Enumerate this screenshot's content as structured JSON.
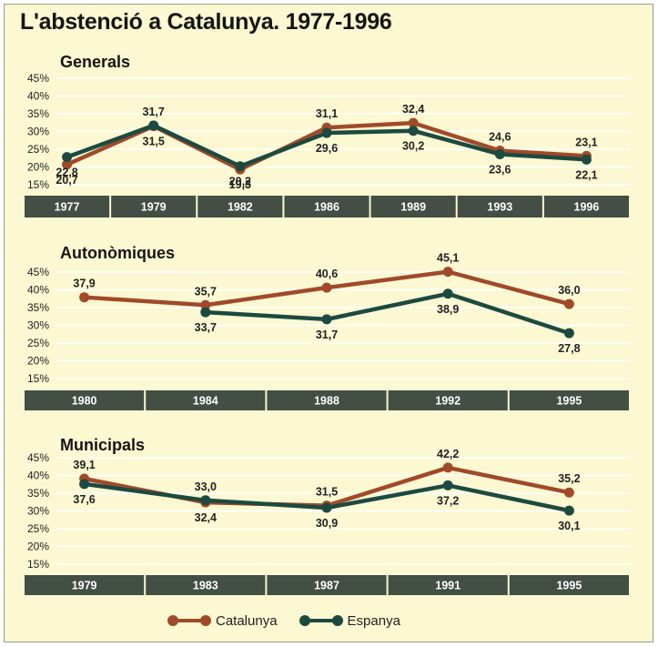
{
  "title": "L'abstenció a Catalunya. 1977-1996",
  "colors": {
    "catalunya": "#a04a2a",
    "espanya": "#1c4a40",
    "gridline": "#ffffff",
    "axis_bar": "#434e44",
    "background": "#fbf8d2"
  },
  "legend": {
    "placement": "bottom-center",
    "items": [
      "Catalunya",
      "Espanya"
    ]
  },
  "chart_data": [
    {
      "type": "line",
      "title": "Generals",
      "categories": [
        "1977",
        "1979",
        "1982",
        "1986",
        "1989",
        "1993",
        "1996"
      ],
      "yticks": [
        "15%",
        "20%",
        "25%",
        "30%",
        "35%",
        "40%",
        "45%"
      ],
      "ylim": [
        15,
        45
      ],
      "grid": true,
      "series": [
        {
          "name": "Catalunya",
          "values": [
            20.7,
            31.5,
            19.3,
            31.1,
            32.4,
            24.6,
            23.1
          ],
          "labels": [
            "20,7",
            "31,5",
            "19,3",
            "31,1",
            "32,4",
            "24,6",
            "23,1"
          ]
        },
        {
          "name": "Espanya",
          "values": [
            22.8,
            31.7,
            20.2,
            29.6,
            30.2,
            23.6,
            22.1
          ],
          "labels": [
            "22,8",
            "31,7",
            "20,2",
            "29,6",
            "30,2",
            "23,6",
            "22,1"
          ]
        }
      ]
    },
    {
      "type": "line",
      "title": "Autonòmiques",
      "categories": [
        "1980",
        "1984",
        "1988",
        "1992",
        "1995"
      ],
      "yticks": [
        "15%",
        "20%",
        "25%",
        "30%",
        "35%",
        "40%",
        "45%"
      ],
      "ylim": [
        15,
        45
      ],
      "grid": true,
      "series": [
        {
          "name": "Catalunya",
          "values": [
            37.9,
            35.7,
            40.6,
            45.1,
            36.0
          ],
          "labels": [
            "37,9",
            "35,7",
            "40,6",
            "45,1",
            "36,0"
          ]
        },
        {
          "name": "Espanya",
          "values": [
            null,
            33.7,
            31.7,
            38.9,
            27.8
          ],
          "labels": [
            null,
            "33,7",
            "31,7",
            "38,9",
            "27,8"
          ]
        }
      ]
    },
    {
      "type": "line",
      "title": "Municipals",
      "categories": [
        "1979",
        "1983",
        "1987",
        "1991",
        "1995"
      ],
      "yticks": [
        "15%",
        "20%",
        "25%",
        "30%",
        "35%",
        "40%",
        "45%"
      ],
      "ylim": [
        15,
        45
      ],
      "grid": true,
      "series": [
        {
          "name": "Catalunya",
          "values": [
            39.1,
            32.4,
            31.5,
            42.2,
            35.2
          ],
          "labels": [
            "39,1",
            "32,4",
            "31,5",
            "42,2",
            "35,2"
          ]
        },
        {
          "name": "Espanya",
          "values": [
            37.6,
            33.0,
            30.9,
            37.2,
            30.1
          ],
          "labels": [
            "37,6",
            "33,0",
            "30,9",
            "37,2",
            "30,1"
          ]
        }
      ]
    }
  ]
}
